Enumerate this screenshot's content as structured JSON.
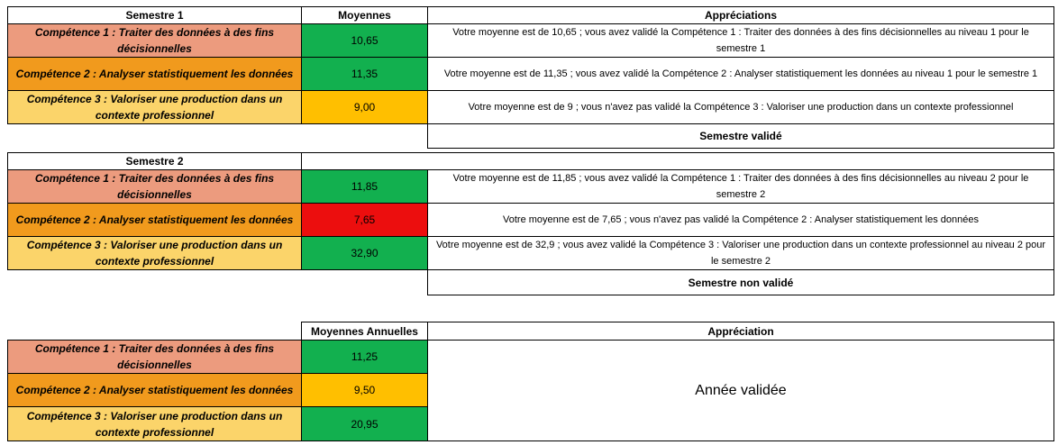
{
  "semestre1": {
    "label": "Semestre 1",
    "col_moyennes": "Moyennes",
    "col_appreciations": "Appréciations",
    "rows": [
      {
        "competence": "Compétence 1 : Traiter des données à des fins décisionnelles",
        "moyenne": "10,65",
        "appreciation": "Votre moyenne est de 10,65 ; vous avez validé la Compétence 1 : Traiter des données à des fins décisionnelles au niveau 1 pour le semestre 1"
      },
      {
        "competence": "Compétence 2 : Analyser statistiquement les données",
        "moyenne": "11,35",
        "appreciation": "Votre moyenne est de 11,35 ; vous avez validé la Compétence 2 : Analyser statistiquement les données au niveau 1 pour le semestre 1"
      },
      {
        "competence": "Compétence 3 : Valoriser une production dans un contexte professionnel",
        "moyenne": "9,00",
        "appreciation": "Votre moyenne est de 9 ; vous n'avez pas validé la Compétence 3 : Valoriser une production dans un contexte professionnel"
      }
    ],
    "resultat": "Semestre validé"
  },
  "semestre2": {
    "label": "Semestre 2",
    "rows": [
      {
        "competence": "Compétence 1 : Traiter des données à des fins décisionnelles",
        "moyenne": "11,85",
        "appreciation": "Votre moyenne est de 11,85 ; vous avez validé la Compétence 1 : Traiter des données à des fins décisionnelles au niveau 2 pour le semestre 2"
      },
      {
        "competence": "Compétence 2 : Analyser statistiquement les données",
        "moyenne": "7,65",
        "appreciation": "Votre moyenne est de 7,65 ; vous n'avez pas validé la Compétence 2 : Analyser statistiquement les données"
      },
      {
        "competence": "Compétence 3 : Valoriser une production dans un contexte professionnel",
        "moyenne": "32,90",
        "appreciation": "Votre moyenne est de 32,9 ; vous avez validé la Compétence 3 : Valoriser une production dans un contexte professionnel au niveau 2 pour le semestre 2"
      }
    ],
    "resultat": "Semestre non validé"
  },
  "annuel": {
    "col_moyennes": "Moyennes Annuelles",
    "col_appreciation": "Appréciation",
    "rows": [
      {
        "competence": "Compétence 1 : Traiter des données à des fins décisionnelles",
        "moyenne": "11,25"
      },
      {
        "competence": "Compétence 2 : Analyser statistiquement les données",
        "moyenne": "9,50"
      },
      {
        "competence": "Compétence 3 : Valoriser une production dans un contexte professionnel",
        "moyenne": "20,95"
      }
    ],
    "appreciation": "Année validée"
  },
  "colors": {
    "competence_1": "#ec9b7e",
    "competence_2": "#f19a1d",
    "competence_3": "#fbd46a",
    "valide": "#12b04f",
    "limite": "#ffbf00",
    "non_valide": "#ec0e0e"
  }
}
